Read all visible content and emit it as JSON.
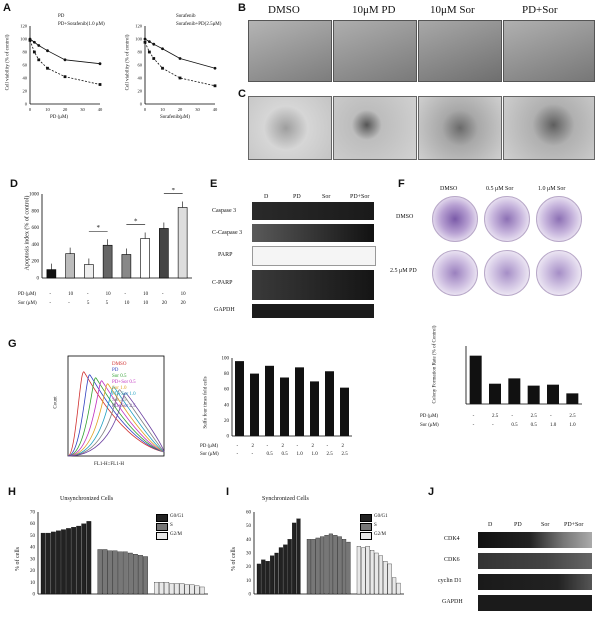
{
  "panels": {
    "A": "A",
    "B": "B",
    "C": "C",
    "D": "D",
    "E": "E",
    "F": "F",
    "G": "G",
    "H": "H",
    "I": "I",
    "J": "J"
  },
  "panelA": {
    "left_ylabel": "Cell viability (% of control)",
    "left_xlabel": "PD (μM)",
    "left_legend": [
      "PD",
      "PD+Sorafenib(1.0 μM)"
    ],
    "left_xticks": [
      "0",
      "10",
      "20",
      "30",
      "40"
    ],
    "right_ylabel": "Cell viability (% of control)",
    "right_xlabel": "Sorafenib(μM)",
    "right_legend": [
      "Sorafenib",
      "Sorafenib+PD(2.5μM)"
    ],
    "right_xticks": [
      "0",
      "10",
      "20",
      "30",
      "40"
    ],
    "yticks": [
      "0",
      "20",
      "40",
      "60",
      "80",
      "100",
      "120"
    ]
  },
  "panelB": {
    "headers": [
      "DMSO",
      "10μM PD",
      "10μM Sor",
      "PD+Sor"
    ]
  },
  "panelD": {
    "ylabel": "Apoptosis index (% of control)",
    "yticks": [
      "0",
      "200",
      "400",
      "600",
      "800",
      "1000"
    ],
    "row_labels": [
      "PD (μM)",
      "Sor (μM)"
    ],
    "pd_values": [
      "-",
      "10",
      "-",
      "10",
      "-",
      "10",
      "-",
      "10"
    ],
    "sor_values": [
      "-",
      "-",
      "5",
      "5",
      "10",
      "10",
      "20",
      "20"
    ],
    "sig": "*"
  },
  "panelE": {
    "headers": [
      "D",
      "PD",
      "Sor",
      "PD+Sor"
    ],
    "rows": [
      "Caspase 3",
      "C-Caspase 3",
      "PARP",
      "C-PARP",
      "GAPDH"
    ]
  },
  "panelF": {
    "col_headers": [
      "DMSO",
      "0.5 μM Sor",
      "1.0 μM Sor"
    ],
    "row_labels": [
      "DMSO",
      "2.5 μM PD"
    ],
    "ylabel": "Colony Formation Rate (% of Control)",
    "row1_label": "PD (μM)",
    "row1": [
      "-",
      "2.5",
      "-",
      "2.5",
      "-",
      "2.5"
    ],
    "row2_label": "Sor (μM)",
    "row2": [
      "-",
      "-",
      "0.5",
      "0.5",
      "1.0",
      "1.0"
    ]
  },
  "panelG": {
    "hist_ylabel": "Count",
    "hist_xlabel": "FL1-H::FL1-H",
    "legend": [
      "DMSO",
      "PD",
      "Sor 0.5",
      "PD+Sor 0.5",
      "Sor 1.0",
      "PD+Sor 1.0",
      "Sor 2.5",
      "PD+Sor 2.5"
    ],
    "bar_ylabel": "Sulfo four times fold cells",
    "yticks": [
      "0",
      "20",
      "40",
      "60",
      "80",
      "100"
    ],
    "row1_label": "PD (μM)",
    "row1": [
      "-",
      "2",
      "-",
      "2",
      "-",
      "2",
      "-",
      "2"
    ],
    "row2_label": "Sor (μM)",
    "row2": [
      "-",
      "-",
      "0.5",
      "0.5",
      "1.0",
      "1.0",
      "2.5",
      "2.5"
    ]
  },
  "panelH": {
    "title": "Unsynchronized Cells",
    "ylabel": "% of cells",
    "yticks": [
      "0",
      "10",
      "20",
      "30",
      "40",
      "50",
      "60",
      "70"
    ],
    "legend": [
      "G0/G1",
      "S",
      "G2/M"
    ]
  },
  "panelI": {
    "title": "Synchronized Cells",
    "ylabel": "% of cells",
    "yticks": [
      "0",
      "10",
      "20",
      "30",
      "40",
      "50",
      "60"
    ],
    "legend": [
      "G0/G1",
      "S",
      "G2/M"
    ]
  },
  "panelJ": {
    "headers": [
      "D",
      "PD",
      "Sor",
      "PD+Sor"
    ],
    "rows": [
      "CDK4",
      "CDK6",
      "cyclin D1",
      "GAPDH"
    ]
  },
  "chart_data": [
    {
      "type": "line",
      "panel": "A-left",
      "xlabel": "PD (μM)",
      "ylabel": "Cell viability (% of control)",
      "series": [
        {
          "name": "PD",
          "x": [
            0,
            2.5,
            5,
            10,
            20,
            40
          ],
          "y": [
            100,
            95,
            90,
            82,
            68,
            62
          ]
        },
        {
          "name": "PD+Sorafenib(1.0 μM)",
          "x": [
            0,
            2.5,
            5,
            10,
            20,
            40
          ],
          "y": [
            98,
            80,
            68,
            55,
            42,
            30
          ]
        }
      ]
    },
    {
      "type": "line",
      "panel": "A-right",
      "xlabel": "Sorafenib(μM)",
      "ylabel": "Cell viability (% of control)",
      "series": [
        {
          "name": "Sorafenib",
          "x": [
            0,
            2.5,
            5,
            10,
            20,
            40
          ],
          "y": [
            100,
            96,
            92,
            85,
            70,
            55
          ]
        },
        {
          "name": "Sorafenib+PD(2.5μM)",
          "x": [
            0,
            2.5,
            5,
            10,
            20,
            40
          ],
          "y": [
            95,
            80,
            70,
            55,
            40,
            28
          ]
        }
      ]
    },
    {
      "type": "bar",
      "panel": "D",
      "values": [
        100,
        290,
        160,
        390,
        280,
        470,
        590,
        840
      ],
      "ylim": [
        0,
        1000
      ]
    },
    {
      "type": "bar",
      "panel": "F",
      "values": [
        100,
        42,
        53,
        38,
        40,
        22
      ],
      "ylim": [
        0,
        120
      ]
    },
    {
      "type": "bar",
      "panel": "G",
      "values": [
        96,
        80,
        90,
        75,
        88,
        70,
        83,
        62
      ],
      "ylim": [
        0,
        100
      ]
    },
    {
      "type": "bar",
      "panel": "H",
      "series": [
        {
          "name": "G0/G1",
          "values": [
            52,
            52,
            53,
            54,
            55,
            56,
            57,
            58,
            60,
            62
          ]
        },
        {
          "name": "S",
          "values": [
            38,
            38,
            37,
            37,
            36,
            36,
            35,
            34,
            33,
            32
          ]
        },
        {
          "name": "G2/M",
          "values": [
            10,
            10,
            10,
            9,
            9,
            9,
            8,
            8,
            7,
            6
          ]
        }
      ]
    },
    {
      "type": "bar",
      "panel": "I",
      "series": [
        {
          "name": "G0/G1",
          "values": [
            22,
            25,
            24,
            28,
            30,
            34,
            36,
            40,
            52,
            55
          ]
        },
        {
          "name": "S",
          "values": [
            40,
            40,
            41,
            42,
            43,
            44,
            43,
            42,
            40,
            38
          ]
        },
        {
          "name": "G2/M",
          "values": [
            35,
            34,
            35,
            32,
            30,
            28,
            24,
            22,
            12,
            8
          ]
        }
      ]
    }
  ]
}
